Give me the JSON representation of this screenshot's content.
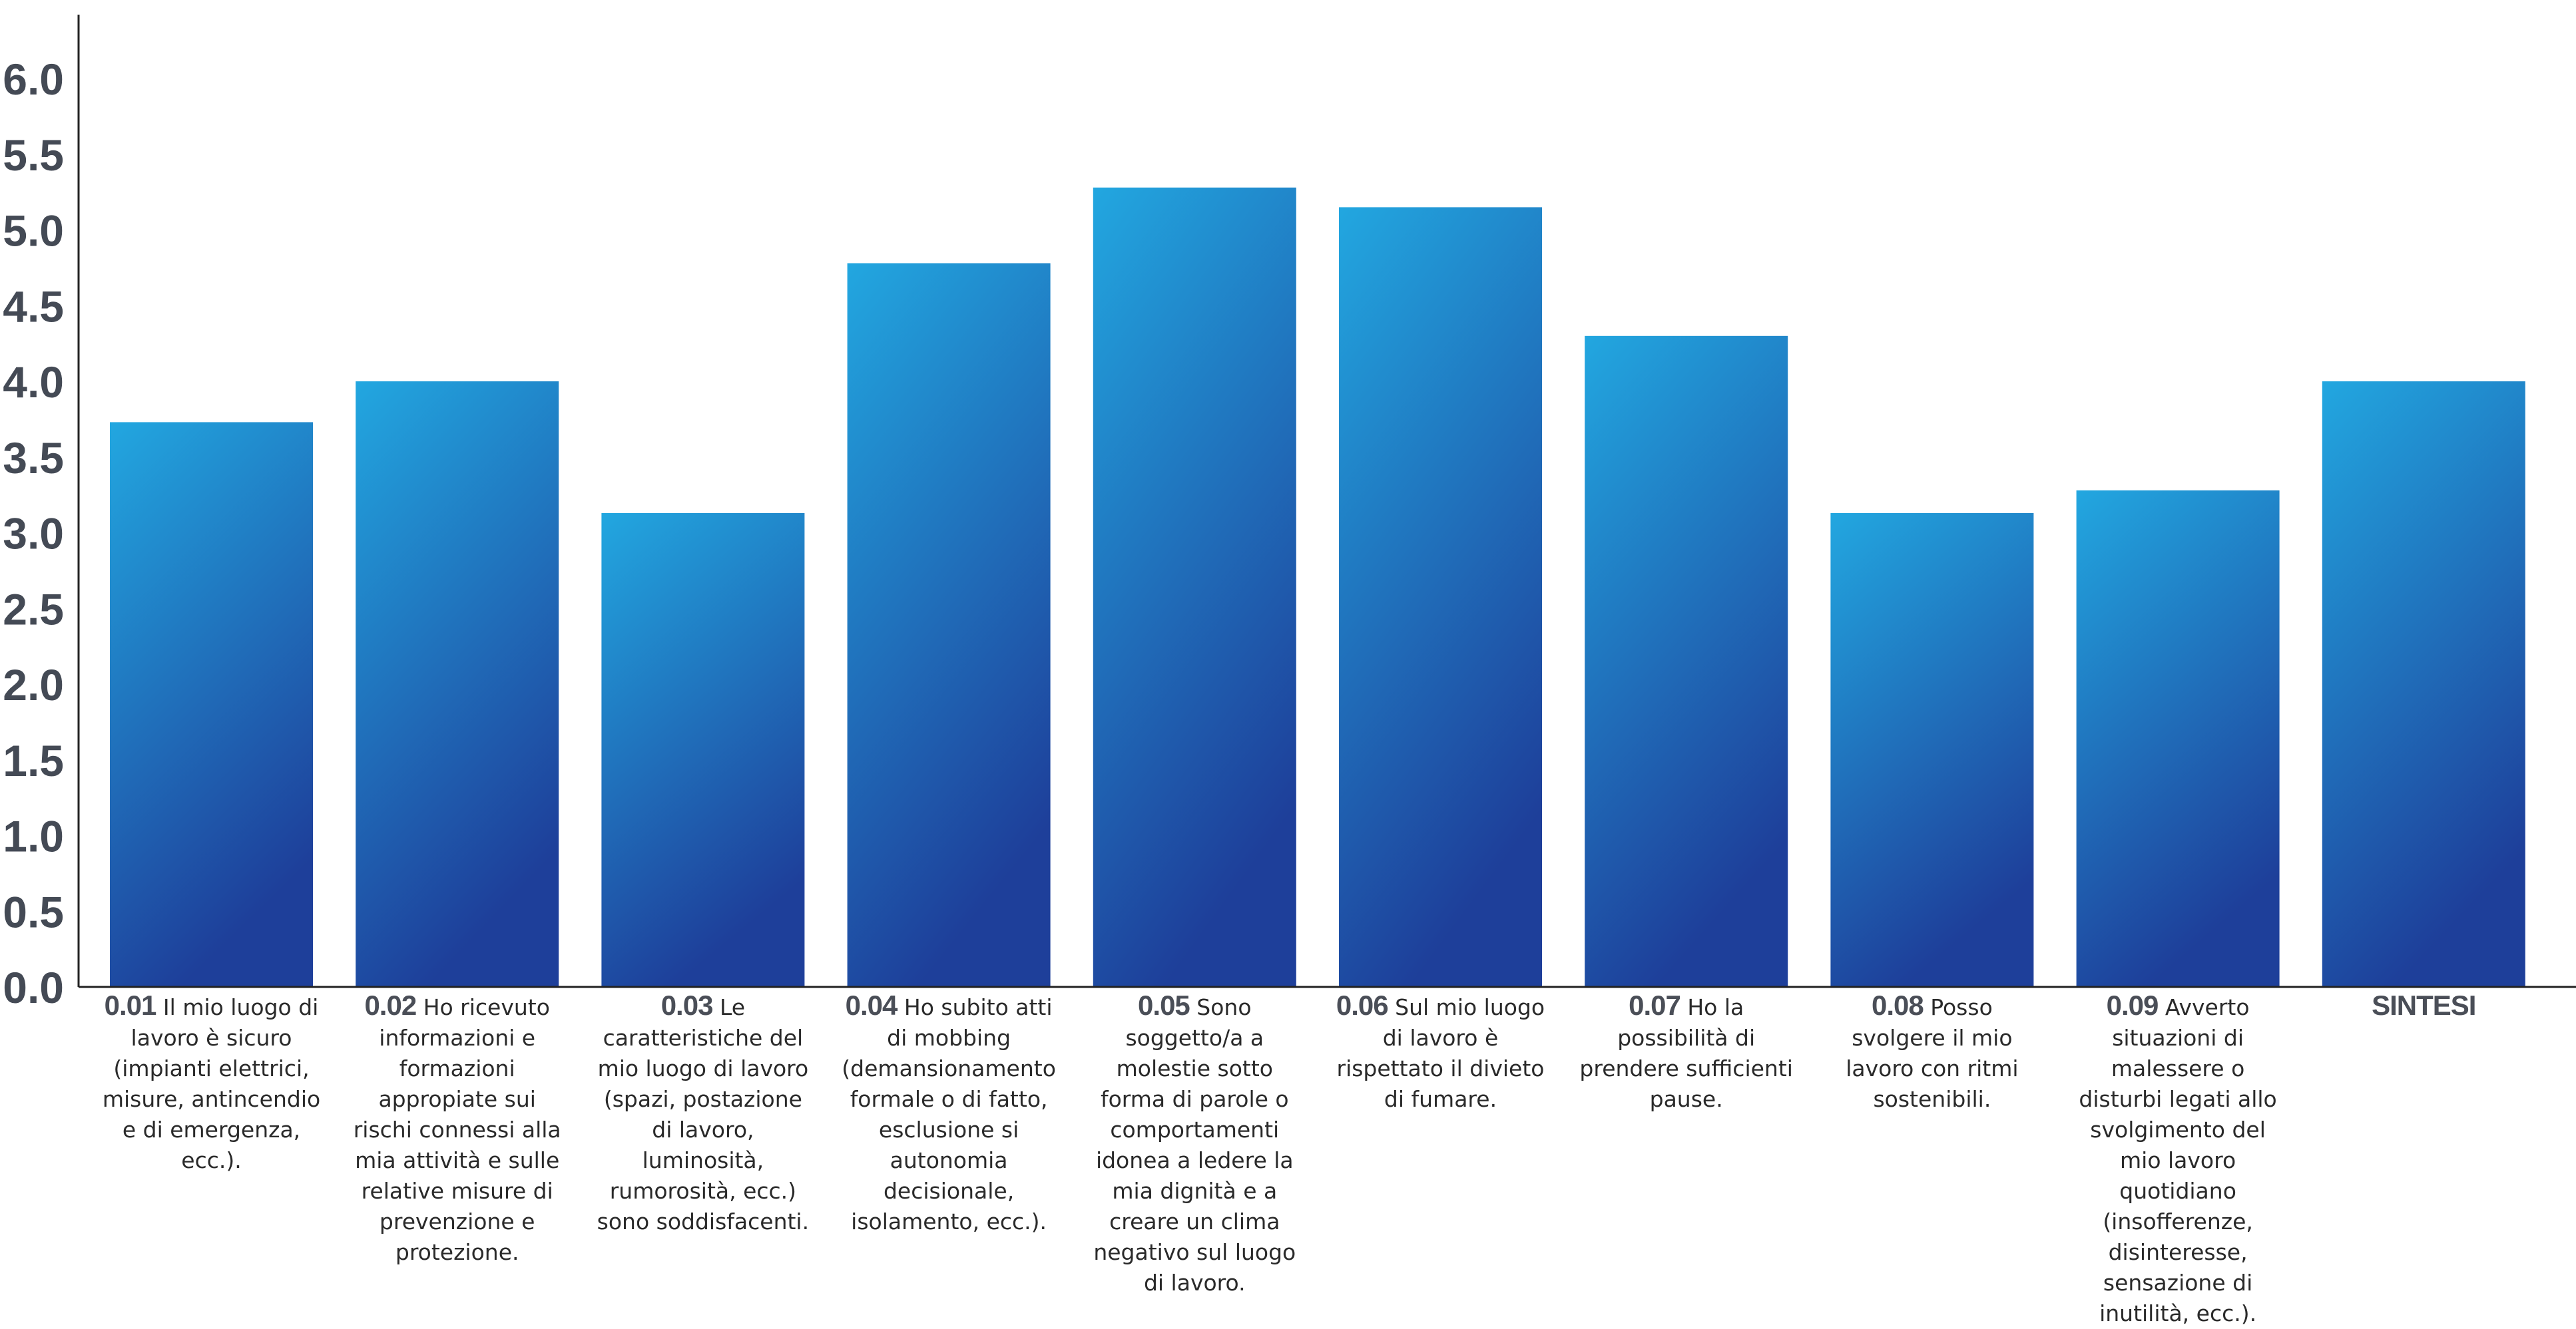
{
  "chart_data": {
    "type": "bar",
    "title": "",
    "xlabel": "",
    "ylabel": "",
    "ylim": [
      0,
      6.3
    ],
    "yticks": [
      "0.0",
      "0.5",
      "1.0",
      "1.5",
      "2.0",
      "2.5",
      "3.0",
      "3.5",
      "4.0",
      "4.5",
      "5.0",
      "5.5",
      "6.0"
    ],
    "grid": false,
    "legend": "none",
    "colors": {
      "bar_top": "#22a7e0",
      "bar_bottom": "#1e3f9a",
      "axis": "#222222"
    },
    "categories": [
      {
        "code": "0.01",
        "text": "Il mio luogo di lavoro è sicuro (impianti elettrici, misure, antincendio e di emergenza, ecc.)."
      },
      {
        "code": "0.02",
        "text": "Ho ricevuto informazioni e formazioni appropiate sui rischi connessi alla mia attività e sulle relative misure di prevenzione e protezione."
      },
      {
        "code": "0.03",
        "text": "Le caratteristiche del mio luogo di lavoro (spazi, postazione di lavoro, luminosità, rumorosità, ecc.) sono soddisfacenti."
      },
      {
        "code": "0.04",
        "text": "Ho subito atti di mobbing (demansionamento formale o di fatto, esclusione si autonomia decisionale, isolamento, ecc.)."
      },
      {
        "code": "0.05",
        "text": "Sono soggetto/a a molestie sotto forma di parole o comportamenti idonea a ledere la mia dignità e a creare un clima negativo sul luogo di lavoro."
      },
      {
        "code": "0.06",
        "text": "Sul mio luogo di lavoro è rispettato il divieto di fumare."
      },
      {
        "code": "0.07",
        "text": "Ho la possibilità di prendere sufficienti pause."
      },
      {
        "code": "0.08",
        "text": "Posso svolgere il mio lavoro con ritmi sostenibili."
      },
      {
        "code": "0.09",
        "text": "Avverto situazioni di malessere o disturbi legati allo svolgimento del mio lavoro quotidiano (insofferenze, disinteresse, sensazione di inutilità, ecc.)."
      },
      {
        "code": "SINTESI",
        "text": ""
      }
    ],
    "values": [
      3.73,
      4.0,
      3.13,
      4.78,
      5.28,
      5.15,
      4.3,
      3.13,
      3.28,
      4.0
    ]
  }
}
